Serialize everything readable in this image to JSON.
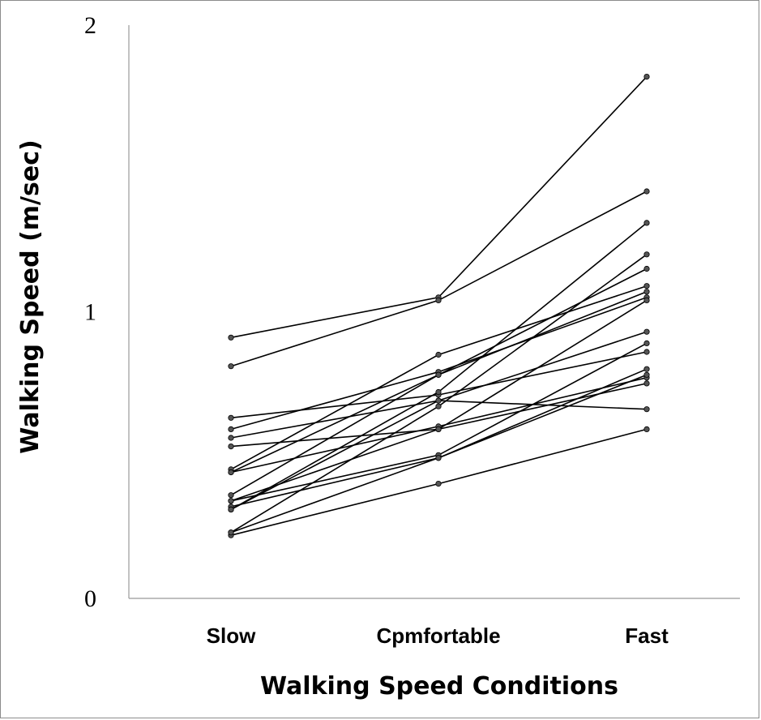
{
  "chart_data": {
    "type": "line",
    "categories": [
      "Slow",
      "Cpmfortable",
      "Fast"
    ],
    "xlabel": "Walking Speed Conditions",
    "ylabel": "Walking Speed (m/sec)",
    "ylim": [
      0,
      2
    ],
    "yticks": [
      "0",
      "1",
      "2"
    ],
    "grid": false,
    "series": [
      {
        "values": [
          0.91,
          1.05,
          1.82
        ]
      },
      {
        "values": [
          0.81,
          1.04,
          1.42
        ]
      },
      {
        "values": [
          0.63,
          0.71,
          0.86
        ]
      },
      {
        "values": [
          0.59,
          0.79,
          1.05
        ]
      },
      {
        "values": [
          0.56,
          0.69,
          0.93
        ]
      },
      {
        "values": [
          0.53,
          0.59,
          1.04
        ]
      },
      {
        "values": [
          0.45,
          0.85,
          1.09
        ]
      },
      {
        "values": [
          0.44,
          0.78,
          1.15
        ]
      },
      {
        "values": [
          0.36,
          0.78,
          1.07
        ]
      },
      {
        "values": [
          0.34,
          0.5,
          0.89
        ]
      },
      {
        "values": [
          0.32,
          0.49,
          0.8
        ]
      },
      {
        "values": [
          0.31,
          0.72,
          1.31
        ]
      },
      {
        "values": [
          0.23,
          0.67,
          1.2
        ]
      },
      {
        "values": [
          0.22,
          0.4,
          0.59
        ]
      },
      {
        "values": [
          0.44,
          0.6,
          0.77
        ]
      },
      {
        "values": [
          0.34,
          0.59,
          0.75
        ]
      },
      {
        "values": [
          0.23,
          0.49,
          0.78
        ]
      },
      {
        "values": [
          0.31,
          0.69,
          0.66
        ]
      }
    ]
  },
  "style": {
    "line_color": "#000000",
    "marker_color": "#555555",
    "axis_color": "#999999"
  }
}
